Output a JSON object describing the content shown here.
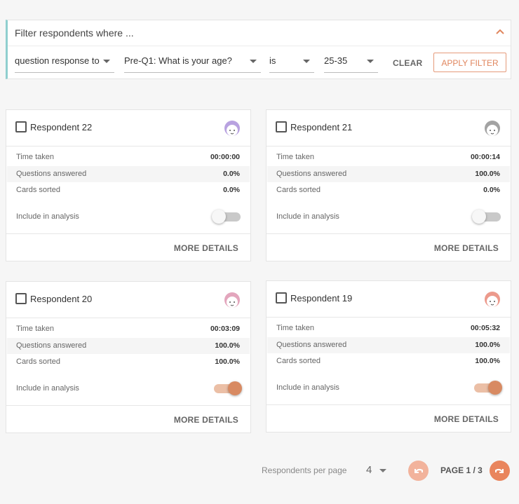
{
  "filter": {
    "title": "Filter respondents where ...",
    "fields": [
      "question response to",
      "Pre-Q1: What is your age?",
      "is",
      "25-35"
    ],
    "clear": "CLEAR",
    "apply": "APPLY FILTER"
  },
  "cards": [
    {
      "name": "Respondent 22",
      "avatar_color": "#b8a2e0",
      "rows": [
        [
          "Time taken",
          "00:00:00"
        ],
        [
          "Questions answered",
          "0.0%"
        ],
        [
          "Cards sorted",
          "0.0%"
        ]
      ],
      "include_label": "Include in analysis",
      "included": false,
      "button": "MORE DETAILS"
    },
    {
      "name": "Respondent 21",
      "avatar_color": "#a3a3a3",
      "rows": [
        [
          "Time taken",
          "00:00:14"
        ],
        [
          "Questions answered",
          "100.0%"
        ],
        [
          "Cards sorted",
          "0.0%"
        ]
      ],
      "include_label": "Include in analysis",
      "included": false,
      "button": "MORE DETAILS"
    },
    {
      "name": "Respondent 20",
      "avatar_color": "#e3a6bd",
      "rows": [
        [
          "Time taken",
          "00:03:09"
        ],
        [
          "Questions answered",
          "100.0%"
        ],
        [
          "Cards sorted",
          "100.0%"
        ]
      ],
      "include_label": "Include in analysis",
      "included": true,
      "button": "MORE DETAILS"
    },
    {
      "name": "Respondent 19",
      "avatar_color": "#ec9a8c",
      "rows": [
        [
          "Time taken",
          "00:05:32"
        ],
        [
          "Questions answered",
          "100.0%"
        ],
        [
          "Cards sorted",
          "100.0%"
        ]
      ],
      "include_label": "Include in analysis",
      "included": true,
      "button": "MORE DETAILS"
    }
  ],
  "pagination": {
    "per_page_label": "Respondents per page",
    "per_page": "4",
    "page": "PAGE 1 / 3"
  }
}
